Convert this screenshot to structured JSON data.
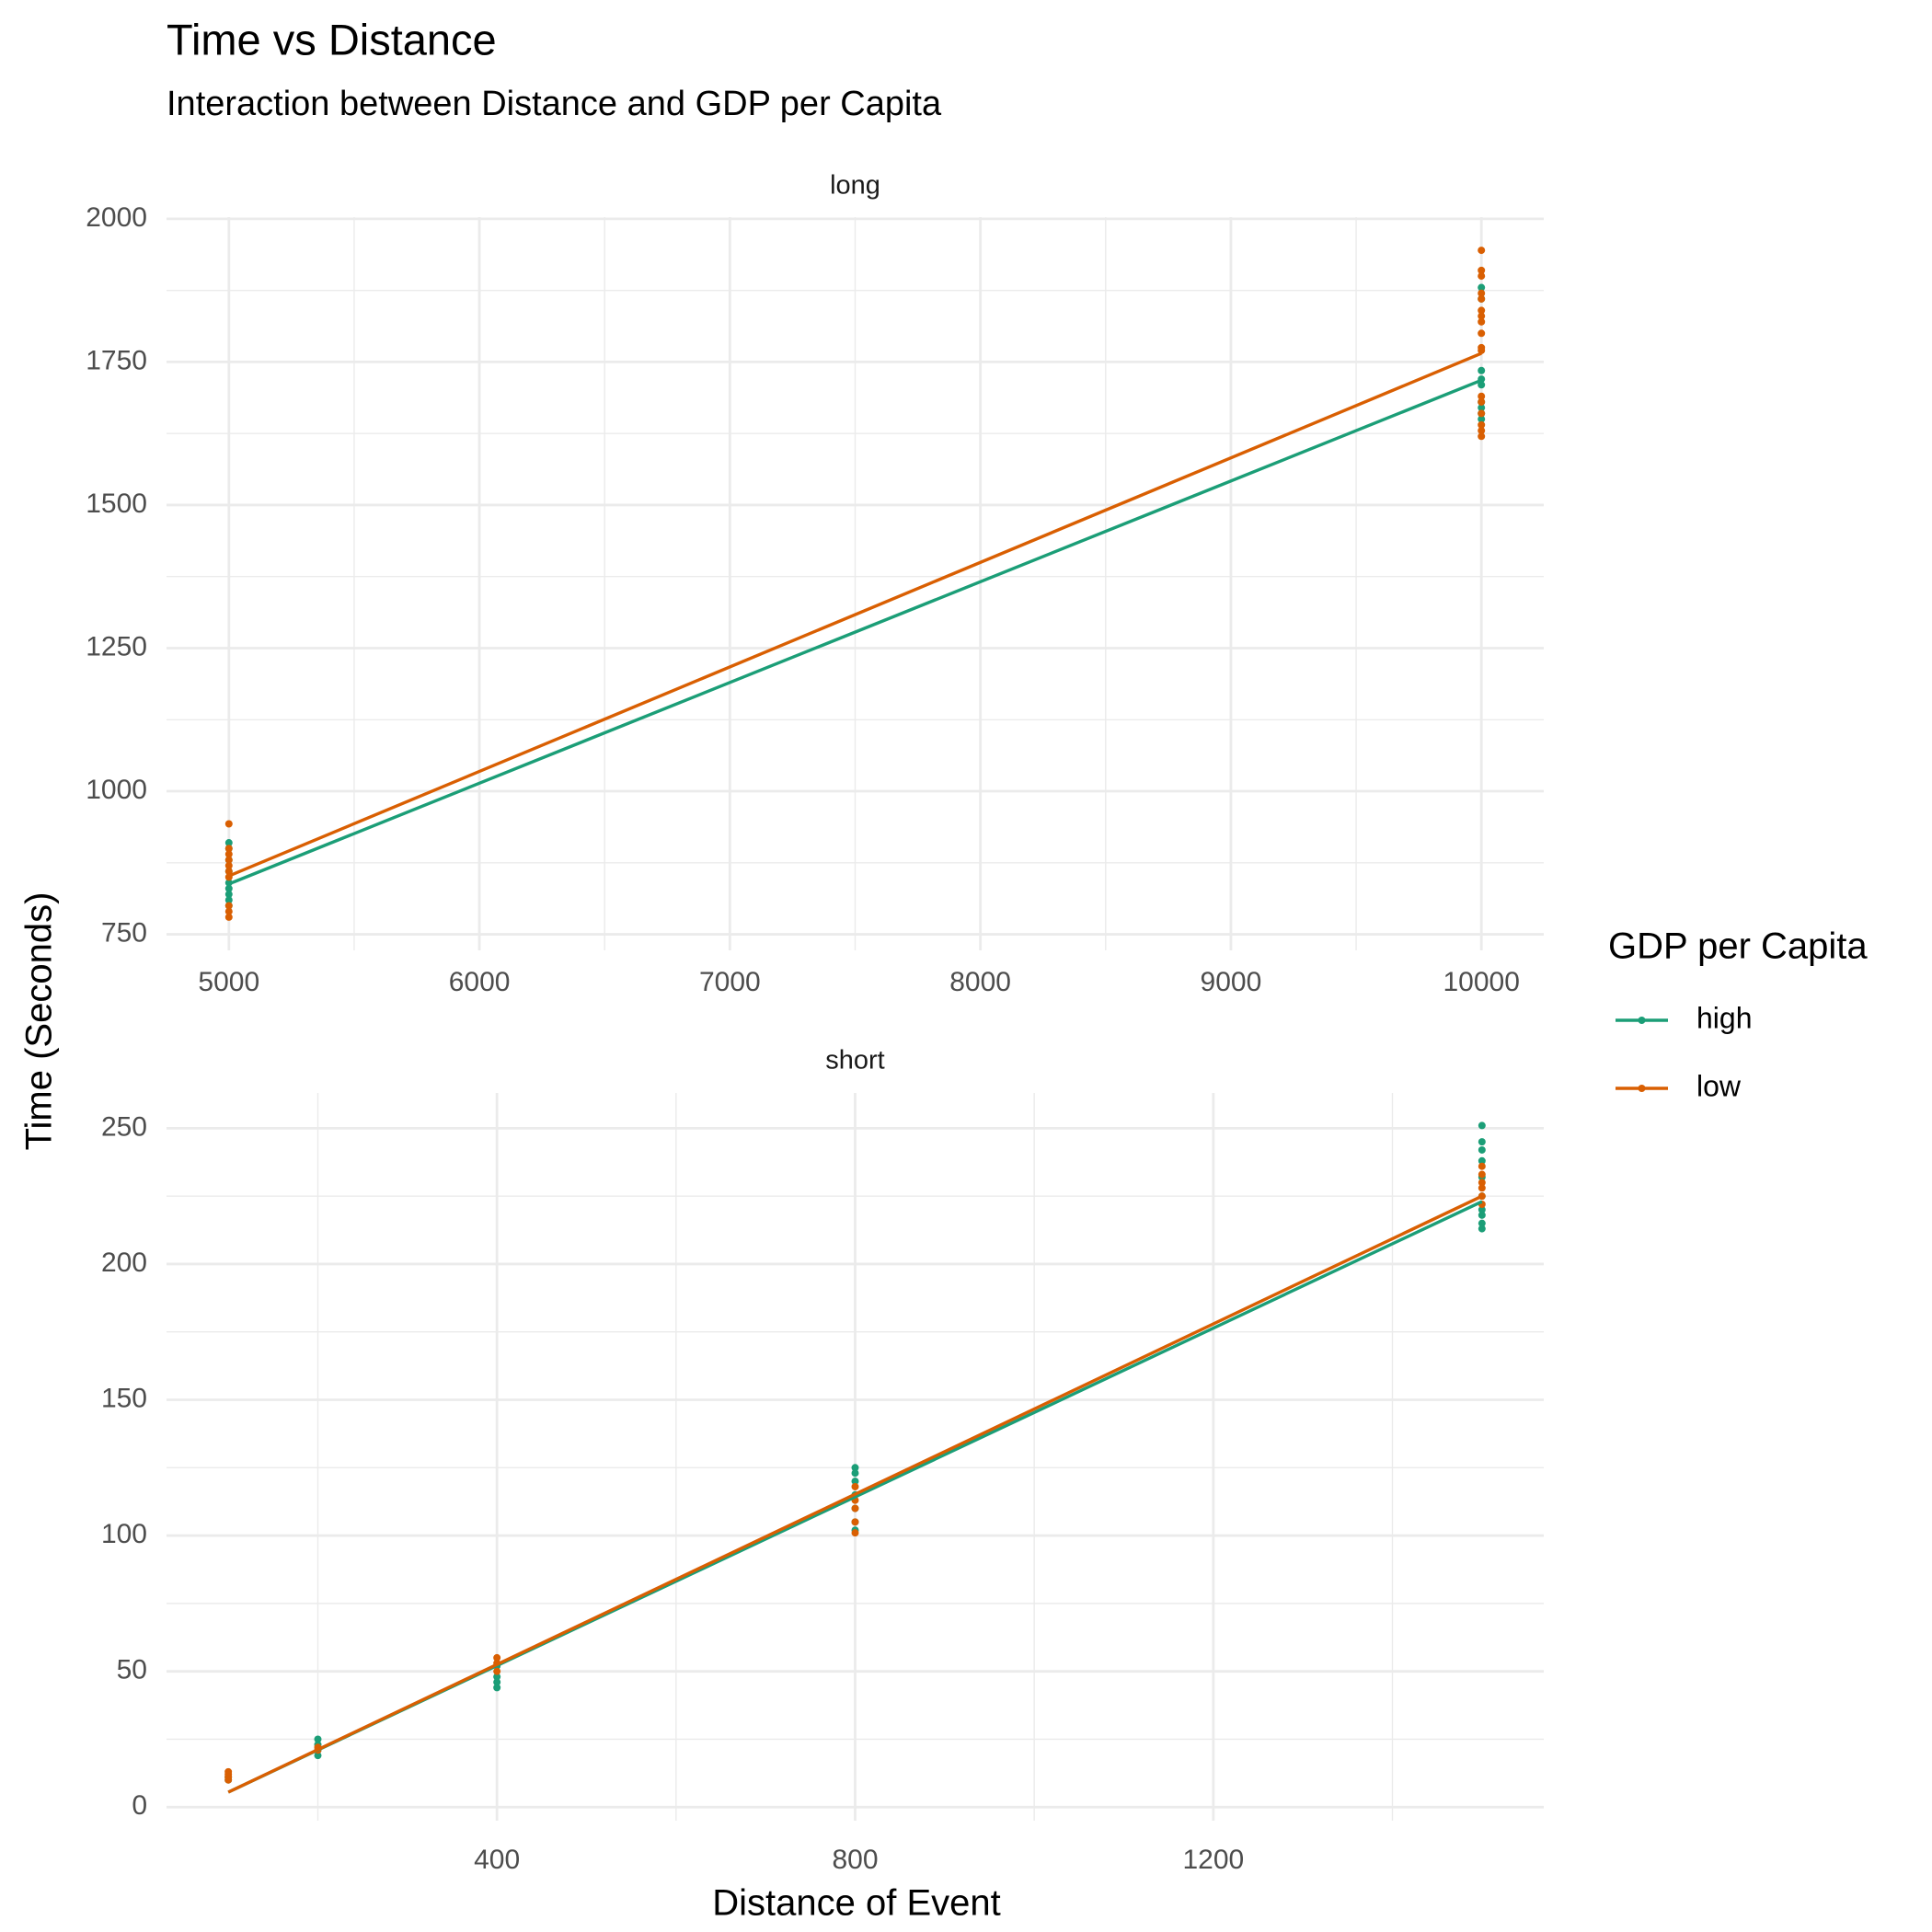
{
  "chart_data": {
    "type": "scatter",
    "title": "Time vs Distance",
    "subtitle": "Interaction between Distance and GDP per Capita",
    "x_label": "Distance of Event",
    "y_label": "Time (Seconds)",
    "legend_title": "GDP per Capita",
    "grid": true,
    "legend_position": "right",
    "series": [
      {
        "name": "high",
        "color": "#1b9e77"
      },
      {
        "name": "low",
        "color": "#d95f02"
      }
    ],
    "facets": [
      {
        "label": "long",
        "xlim": [
          4751,
          10249
        ],
        "ylim": [
          722,
          2003
        ],
        "xticks": [
          5000,
          6000,
          7000,
          8000,
          9000,
          10000
        ],
        "yticks": [
          750,
          1000,
          1250,
          1500,
          1750,
          2000
        ],
        "minor_xticks": [
          5500,
          6500,
          7500,
          8500,
          9500
        ],
        "minor_yticks": [
          875,
          1125,
          1375,
          1625,
          1875
        ],
        "series": [
          {
            "x": [
              5000,
              5000,
              5000,
              5000,
              5000,
              5000,
              5000,
              5000,
              5000,
              10000,
              10000,
              10000,
              10000,
              10000,
              10000,
              10000,
              10000,
              10000
            ],
            "values": [
              910,
              900,
              880,
              860,
              840,
              830,
              820,
              810,
              800,
              1880,
              1860,
              1735,
              1720,
              1710,
              1680,
              1670,
              1660,
              1650
            ],
            "fit_x": [
              5000,
              10000
            ],
            "fit_values": [
              838,
              1718
            ]
          },
          {
            "x": [
              5000,
              5000,
              5000,
              5000,
              5000,
              5000,
              5000,
              5000,
              5000,
              5000,
              10000,
              10000,
              10000,
              10000,
              10000,
              10000,
              10000,
              10000,
              10000,
              10000,
              10000,
              10000,
              10000,
              10000,
              10000,
              10000,
              10000
            ],
            "values": [
              943,
              900,
              890,
              880,
              870,
              860,
              850,
              800,
              790,
              780,
              1945,
              1910,
              1900,
              1870,
              1860,
              1840,
              1830,
              1820,
              1800,
              1775,
              1770,
              1690,
              1680,
              1660,
              1640,
              1630,
              1620
            ],
            "fit_x": [
              5000,
              10000
            ],
            "fit_values": [
              852,
              1765
            ]
          }
        ]
      },
      {
        "label": "short",
        "xlim": [
          31,
          1569
        ],
        "ylim": [
          -5,
          263
        ],
        "xticks": [
          400,
          800,
          1200
        ],
        "yticks": [
          0,
          50,
          100,
          150,
          200,
          250
        ],
        "minor_xticks": [
          200,
          600,
          1000,
          1400
        ],
        "minor_yticks": [
          25,
          75,
          125,
          175,
          225
        ],
        "series": [
          {
            "x": [
              100,
              100,
              200,
              200,
              200,
              200,
              400,
              400,
              400,
              400,
              800,
              800,
              800,
              800,
              800,
              800,
              800,
              1500,
              1500,
              1500,
              1500,
              1500,
              1500,
              1500,
              1500,
              1500,
              1500
            ],
            "values": [
              11,
              10,
              25,
              23,
              21,
              19,
              52,
              48,
              46,
              44,
              125,
              123,
              120,
              115,
              110,
              105,
              102,
              251,
              245,
              242,
              238,
              232,
              225,
              220,
              218,
              215,
              213
            ],
            "fit_x": [
              100,
              1500
            ],
            "fit_values": [
              5.5,
              223
            ]
          },
          {
            "x": [
              100,
              100,
              100,
              100,
              200,
              200,
              400,
              400,
              400,
              800,
              800,
              800,
              800,
              800,
              1500,
              1500,
              1500,
              1500,
              1500,
              1500
            ],
            "values": [
              13,
              12,
              11,
              10,
              22,
              21,
              55,
              53,
              50,
              118,
              113,
              110,
              105,
              101,
              236,
              233,
              230,
              228,
              225,
              222
            ],
            "fit_x": [
              100,
              1500
            ],
            "fit_values": [
              5.5,
              225
            ]
          }
        ]
      }
    ]
  }
}
